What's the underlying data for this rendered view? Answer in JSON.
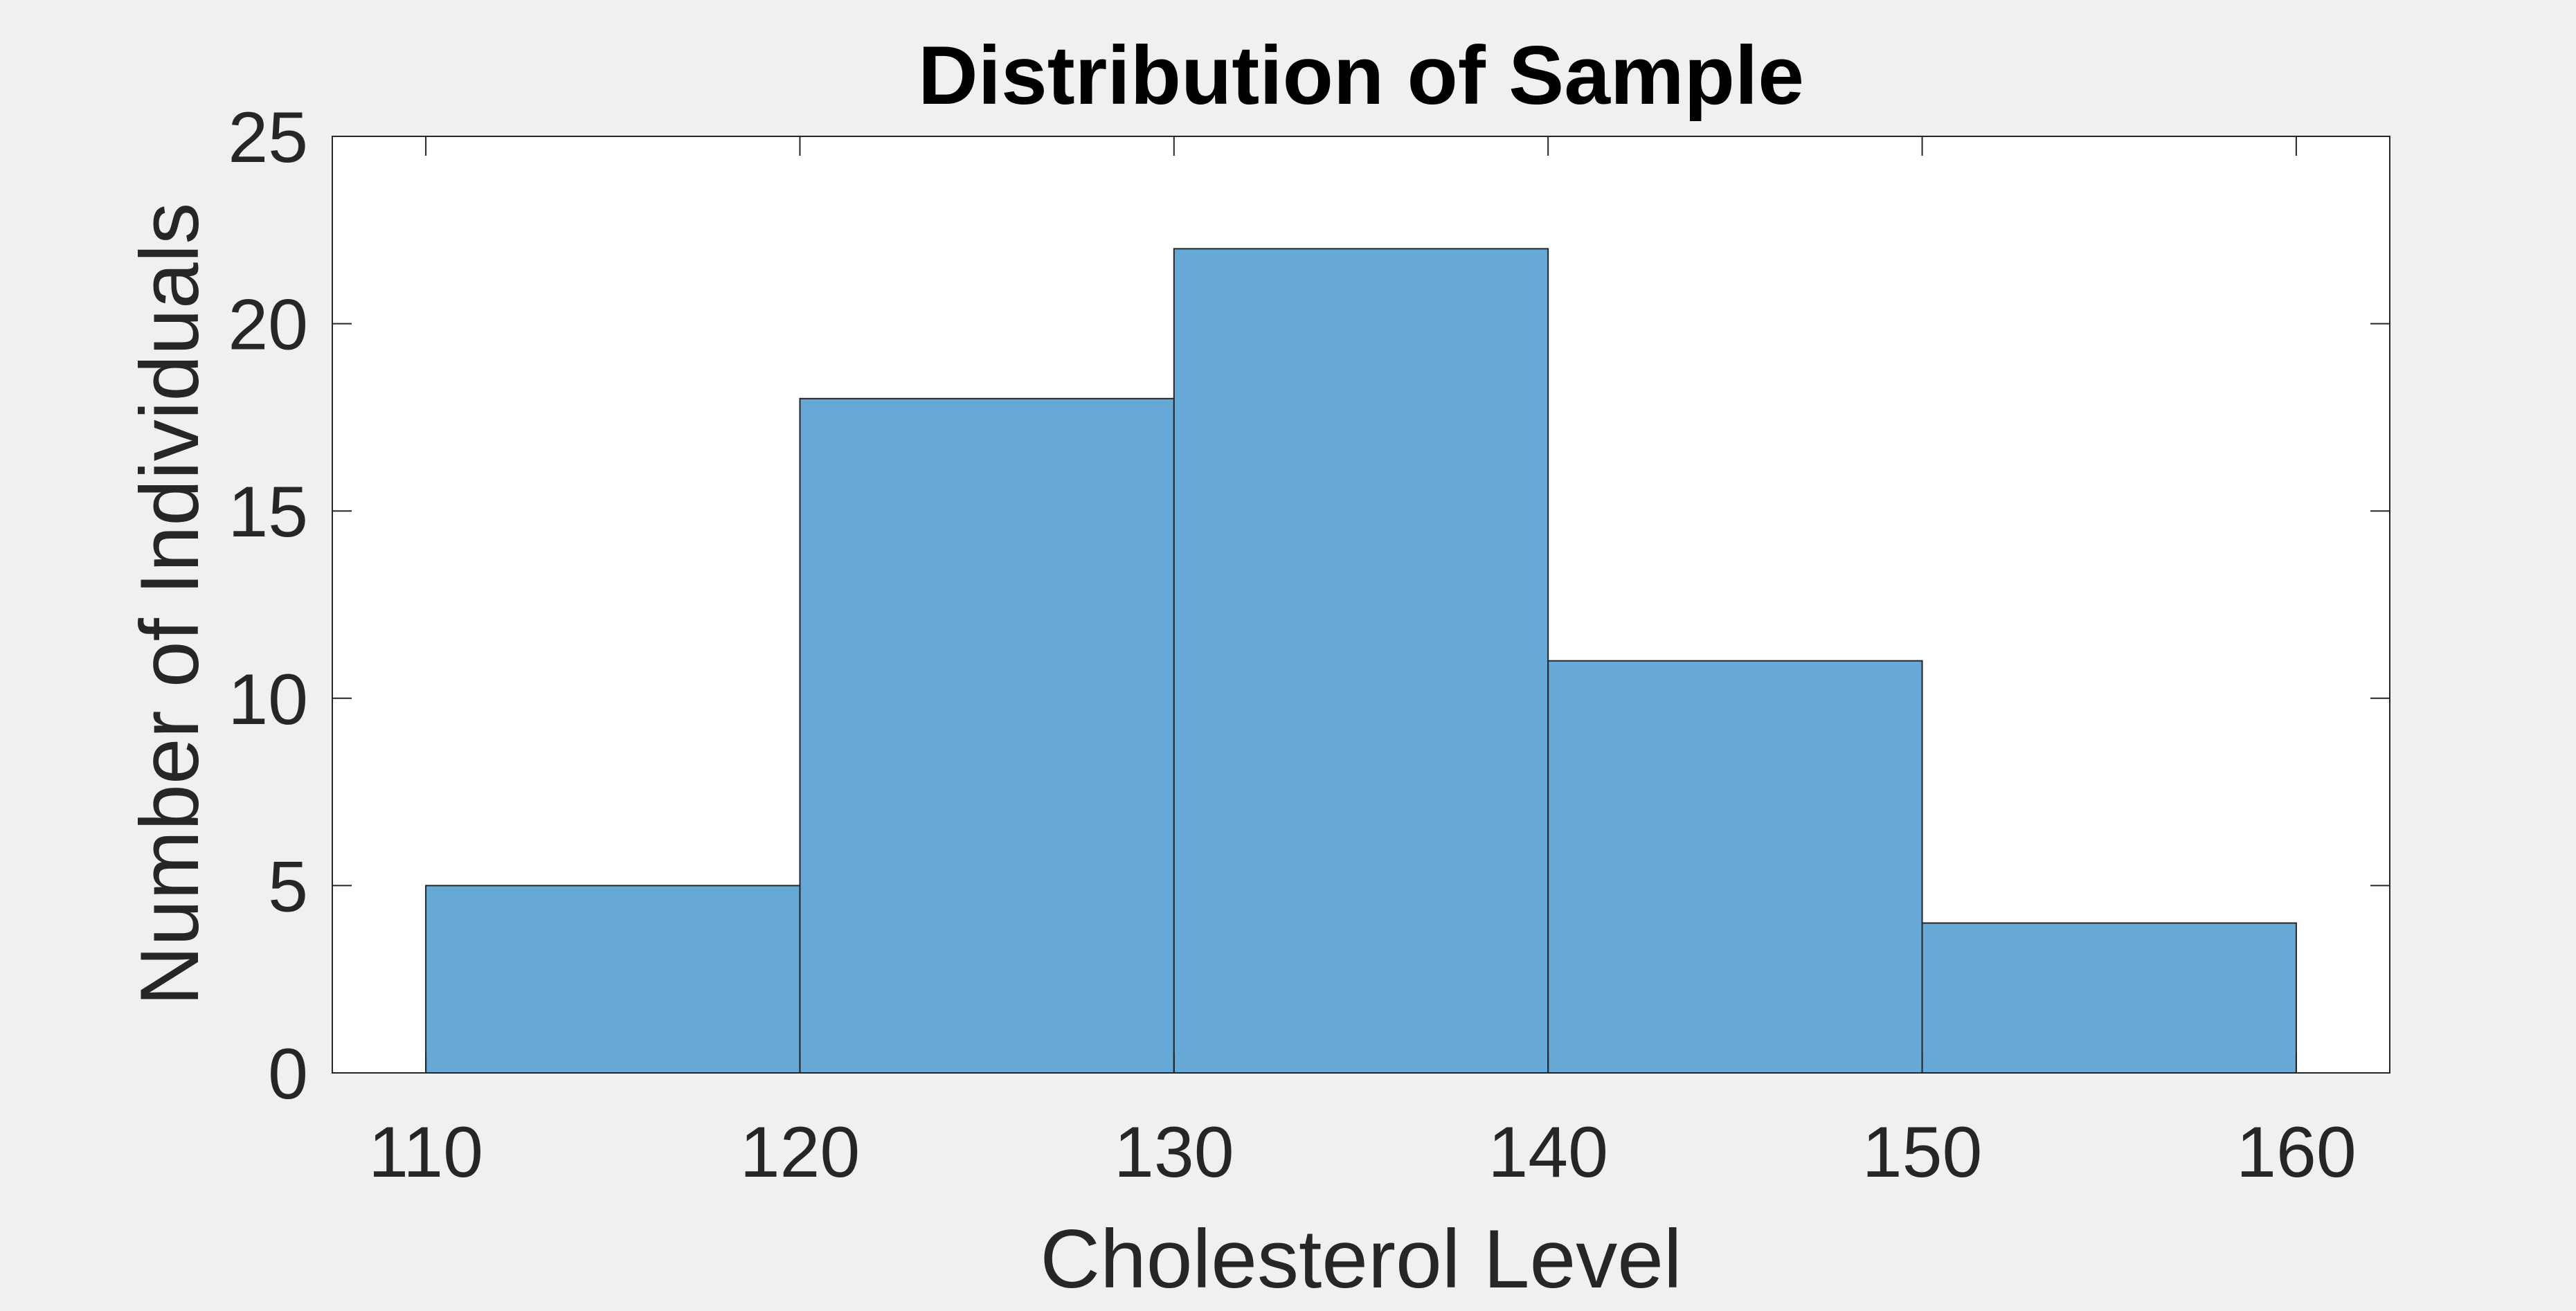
{
  "chart_data": {
    "type": "bar",
    "title": "Distribution of Sample",
    "xlabel": "Cholesterol Level",
    "ylabel": "Number of Individuals",
    "bin_edges": [
      110,
      120,
      130,
      140,
      150,
      160
    ],
    "values": [
      5,
      18,
      22,
      11,
      4
    ],
    "xlim": [
      107.5,
      162.5
    ],
    "ylim": [
      0,
      25
    ],
    "x_ticks": [
      110,
      120,
      130,
      140,
      150,
      160
    ],
    "y_ticks": [
      0,
      5,
      10,
      15,
      20,
      25
    ],
    "bar_color": "#66a9d7",
    "edge_color": "#262626",
    "grid": false,
    "legend": "none"
  }
}
